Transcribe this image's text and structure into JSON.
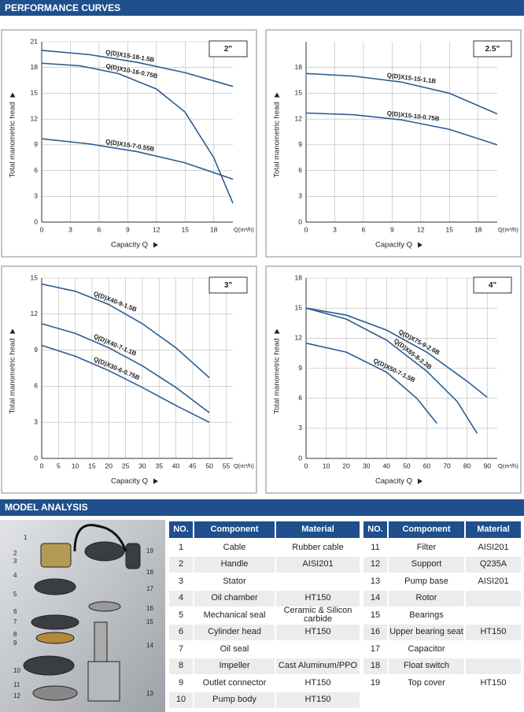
{
  "header": {
    "title": "PERFORMANCE CURVES"
  },
  "chart_data": [
    {
      "type": "line",
      "title": "2\"",
      "x_label": "Capacity Q",
      "x_unit": "Q(m³/h)",
      "y_label": "Total manometric head",
      "xlim": [
        0,
        20
      ],
      "xticks": [
        0,
        3,
        6,
        9,
        12,
        15,
        18
      ],
      "ylim": [
        0,
        21
      ],
      "yticks": [
        0,
        3,
        6,
        9,
        12,
        15,
        18,
        21
      ],
      "grid": true,
      "series": [
        {
          "name": "Q(D)X15-18-1.5B",
          "color": "#2b5d92",
          "x": [
            0,
            5,
            10,
            15,
            20
          ],
          "values": [
            20,
            19.5,
            18.6,
            17.4,
            15.8
          ]
        },
        {
          "name": "Q(D)X10-16-0.75B",
          "color": "#2b5d92",
          "x": [
            0,
            4,
            8,
            12,
            15,
            18,
            20
          ],
          "values": [
            18.5,
            18.2,
            17.3,
            15.5,
            12.8,
            7.5,
            2.2
          ]
        },
        {
          "name": "Q(D)X15-7-0.55B",
          "color": "#2b5d92",
          "x": [
            0,
            5,
            10,
            15,
            20
          ],
          "values": [
            9.7,
            9.1,
            8.2,
            6.9,
            5.0
          ]
        }
      ]
    },
    {
      "type": "line",
      "title": "2.5\"",
      "x_label": "Capacity Q",
      "x_unit": "Q(m³/h)",
      "y_label": "Total manometric head",
      "xlim": [
        0,
        20
      ],
      "xticks": [
        0,
        3,
        6,
        9,
        12,
        15,
        18
      ],
      "ylim": [
        0,
        21
      ],
      "yticks": [
        0,
        3,
        6,
        9,
        12,
        15,
        18
      ],
      "grid": true,
      "series": [
        {
          "name": "Q(D)X15-15-1.1B",
          "color": "#2b5d92",
          "x": [
            0,
            5,
            10,
            15,
            20
          ],
          "values": [
            17.3,
            17.0,
            16.3,
            15.0,
            12.6
          ]
        },
        {
          "name": "Q(D)X15-10-0.75B",
          "color": "#2b5d92",
          "x": [
            0,
            5,
            10,
            15,
            20
          ],
          "values": [
            12.7,
            12.5,
            11.9,
            10.8,
            9.0
          ]
        }
      ]
    },
    {
      "type": "line",
      "title": "3\"",
      "x_label": "Capacity Q",
      "x_unit": "Q(m³/h)",
      "y_label": "Total manometric head",
      "xlim": [
        0,
        57
      ],
      "xticks": [
        0,
        5,
        10,
        15,
        20,
        25,
        30,
        35,
        40,
        45,
        50,
        55
      ],
      "ylim": [
        0,
        15
      ],
      "yticks": [
        0,
        3,
        6,
        9,
        12,
        15
      ],
      "grid": true,
      "series": [
        {
          "name": "Q(D)X40-9-1.5B",
          "color": "#2b5d92",
          "x": [
            0,
            10,
            20,
            30,
            40,
            50
          ],
          "values": [
            14.5,
            13.9,
            12.8,
            11.2,
            9.2,
            6.7
          ]
        },
        {
          "name": "Q(D)X40-7-1.1B",
          "color": "#2b5d92",
          "x": [
            0,
            10,
            20,
            30,
            40,
            50
          ],
          "values": [
            11.2,
            10.4,
            9.2,
            7.7,
            5.9,
            3.8
          ]
        },
        {
          "name": "Q(D)X30-6-0.75B",
          "color": "#2b5d92",
          "x": [
            0,
            10,
            20,
            30,
            40,
            50
          ],
          "values": [
            9.4,
            8.5,
            7.3,
            5.9,
            4.4,
            3.0
          ]
        }
      ]
    },
    {
      "type": "line",
      "title": "4\"",
      "x_label": "Capacity Q",
      "x_unit": "Q(m³/h)",
      "y_label": "Total manometric head",
      "xlim": [
        0,
        95
      ],
      "xticks": [
        0,
        10,
        20,
        30,
        40,
        50,
        60,
        70,
        80,
        90
      ],
      "ylim": [
        0,
        18
      ],
      "yticks": [
        0,
        3,
        6,
        9,
        12,
        15,
        18
      ],
      "grid": true,
      "series": [
        {
          "name": "Q(D)X75-9-2.6B",
          "color": "#2b5d92",
          "x": [
            0,
            20,
            40,
            60,
            80,
            90
          ],
          "values": [
            15,
            14.3,
            12.8,
            10.6,
            7.7,
            6.1
          ]
        },
        {
          "name": "Q(D)X65-8-2.2B",
          "color": "#2b5d92",
          "x": [
            0,
            20,
            40,
            60,
            75,
            85
          ],
          "values": [
            15,
            13.9,
            11.8,
            8.7,
            5.7,
            2.5
          ]
        },
        {
          "name": "Q(D)X50-7-1.5B",
          "color": "#2b5d92",
          "x": [
            0,
            20,
            40,
            55,
            65
          ],
          "values": [
            11.5,
            10.6,
            8.6,
            6.0,
            3.5
          ]
        }
      ]
    }
  ],
  "model_analysis": {
    "title": "MODEL ANALYSIS",
    "photo_labels": [
      1,
      2,
      3,
      4,
      5,
      6,
      7,
      8,
      9,
      10,
      11,
      12,
      13,
      14,
      15,
      16,
      17,
      18,
      19
    ],
    "tables": [
      {
        "columns": [
          "NO.",
          "Component",
          "Material"
        ],
        "rows": [
          [
            1,
            "Cable",
            "Rubber cable"
          ],
          [
            2,
            "Handle",
            "AISI201"
          ],
          [
            3,
            "Stator",
            null
          ],
          [
            4,
            "Oil chamber",
            "HT150"
          ],
          [
            5,
            "Mechanical seal",
            "Ceramic & Silicon carbide"
          ],
          [
            6,
            "Cylinder head",
            "HT150"
          ],
          [
            7,
            "Oil seal",
            null
          ],
          [
            8,
            "Impeller",
            "Cast Aluminum/PPO"
          ],
          [
            9,
            "Outlet connector",
            "HT150"
          ],
          [
            10,
            "Pump body",
            "HT150"
          ]
        ]
      },
      {
        "columns": [
          "NO.",
          "Component",
          "Material"
        ],
        "rows": [
          [
            11,
            "Filter",
            "AISI201"
          ],
          [
            12,
            "Support",
            "Q235A"
          ],
          [
            13,
            "Pump base",
            "AISI201"
          ],
          [
            14,
            "Rotor",
            null
          ],
          [
            15,
            "Bearings",
            null
          ],
          [
            16,
            "Upper bearing seat",
            "HT150"
          ],
          [
            17,
            "Capacitor",
            null
          ],
          [
            18,
            "Float switch",
            null
          ],
          [
            19,
            "Top cover",
            "HT150"
          ]
        ]
      }
    ]
  }
}
